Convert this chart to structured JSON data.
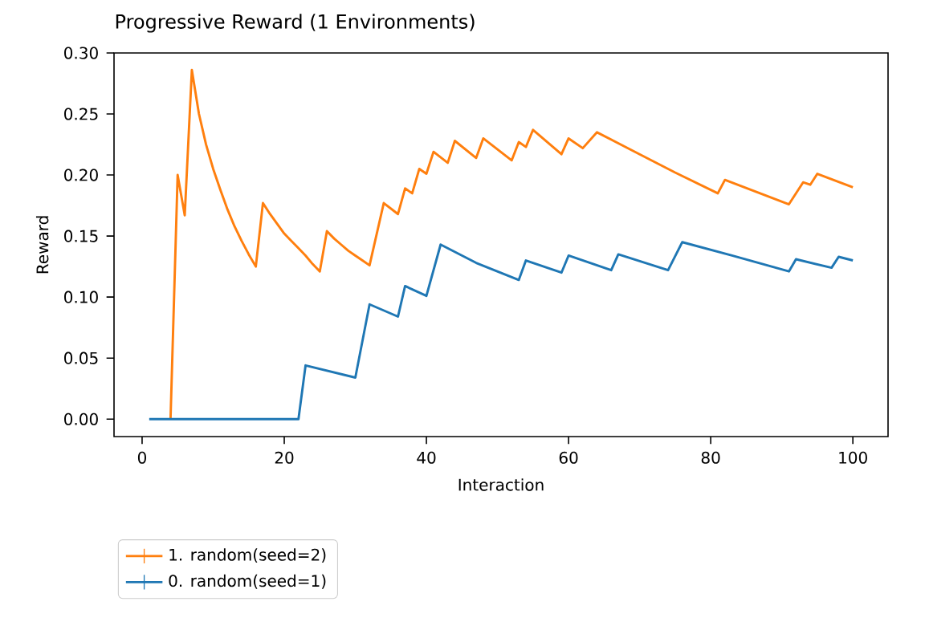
{
  "chart_data": {
    "type": "line",
    "title": "Progressive Reward (1 Environments)",
    "xlabel": "Interaction",
    "ylabel": "Reward",
    "xlim": [
      -3.95,
      104.95
    ],
    "ylim": [
      -0.0143,
      0.3
    ],
    "xticks": [
      0,
      20,
      40,
      60,
      80,
      100
    ],
    "yticks": [
      {
        "value": 0,
        "label": "0.00"
      },
      {
        "value": 0.05,
        "label": "0.05"
      },
      {
        "value": 0.1,
        "label": "0.10"
      },
      {
        "value": 0.15,
        "label": "0.15"
      },
      {
        "value": 0.2,
        "label": "0.20"
      },
      {
        "value": 0.25,
        "label": "0.25"
      },
      {
        "value": 0.3,
        "label": "0.30"
      }
    ],
    "legend": "bottom left",
    "series": [
      {
        "name": "1. random(seed=2)",
        "color": "#ff7f0e",
        "x": [
          4,
          5,
          6,
          7,
          8,
          9,
          10,
          11,
          12,
          13,
          14,
          15,
          16,
          17,
          18,
          19,
          20,
          21,
          22,
          23,
          24,
          25,
          26,
          27,
          28,
          29,
          30,
          31,
          32,
          34,
          36,
          37,
          38,
          39,
          40,
          41,
          43,
          44,
          47,
          48,
          52,
          53,
          54,
          55,
          59,
          60,
          62,
          64,
          70,
          75,
          81,
          82,
          91,
          93,
          94,
          95,
          100
        ],
        "values": [
          0,
          0.2,
          0.167,
          0.286,
          0.25,
          0.225,
          0.205,
          0.188,
          0.172,
          0.158,
          0.146,
          0.135,
          0.125,
          0.177,
          0.168,
          0.16,
          0.152,
          0.146,
          0.14,
          0.134,
          0.127,
          0.121,
          0.154,
          0.148,
          0.143,
          0.138,
          0.134,
          0.13,
          0.126,
          0.177,
          0.168,
          0.189,
          0.185,
          0.205,
          0.201,
          0.219,
          0.21,
          0.228,
          0.214,
          0.23,
          0.212,
          0.227,
          0.223,
          0.237,
          0.217,
          0.23,
          0.222,
          0.235,
          0.217,
          0.202,
          0.185,
          0.196,
          0.176,
          0.194,
          0.192,
          0.201,
          0.19
        ]
      },
      {
        "name": "0. random(seed=1)",
        "color": "#1f77b4",
        "x": [
          1,
          22,
          23,
          30,
          32,
          36,
          37,
          40,
          42,
          47,
          53,
          54,
          59,
          60,
          66,
          67,
          74,
          76,
          83,
          91,
          92,
          97,
          98,
          100
        ],
        "values": [
          0,
          0,
          0.044,
          0.034,
          0.094,
          0.084,
          0.109,
          0.101,
          0.143,
          0.128,
          0.114,
          0.13,
          0.12,
          0.134,
          0.122,
          0.135,
          0.122,
          0.145,
          0.134,
          0.121,
          0.131,
          0.124,
          0.133,
          0.13
        ]
      }
    ]
  }
}
